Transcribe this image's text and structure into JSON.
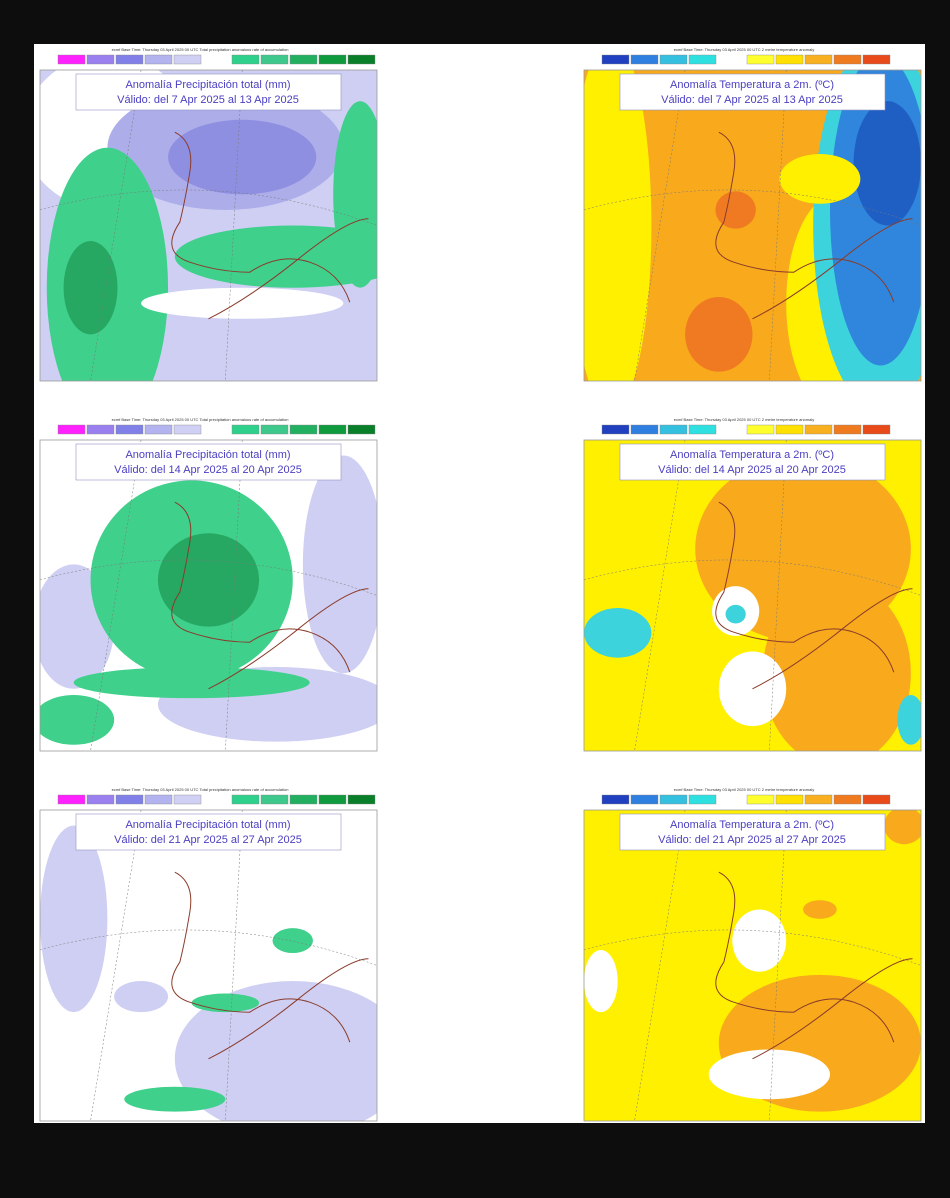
{
  "panels": [
    {
      "header": "ecmf Base Time: Thursday 03 April 2025 00 UTC Total precipitation anomalous rate of accumulation",
      "title": "Anomalía Precipitación total (mm)",
      "valid": "Válido: del 7 Apr 2025 al 13 Apr 2025"
    },
    {
      "header": "ecmf Base Time: Thursday 03 April 2025 00 UTC 2 metre temperature anomaly",
      "title": "Anomalía Temperatura a 2m. (ºC)",
      "valid": "Válido: del 7 Apr 2025 al 13 Apr 2025"
    },
    {
      "header": "ecmf Base Time: Thursday 03 April 2025 00 UTC Total precipitation anomalous rate of accumulation",
      "title": "Anomalía Precipitación total (mm)",
      "valid": "Válido: del 14 Apr 2025 al 20 Apr 2025"
    },
    {
      "header": "ecmf Base Time: Thursday 03 April 2025 00 UTC 2 metre temperature anomaly",
      "title": "Anomalía Temperatura a 2m. (ºC)",
      "valid": "Válido: del 14 Apr 2025 al 20 Apr 2025"
    },
    {
      "header": "ecmf Base Time: Thursday 03 April 2025 00 UTC Total precipitation anomalous rate of accumulation",
      "title": "Anomalía Precipitación total (mm)",
      "valid": "Válido: del 21 Apr 2025 al 27 Apr 2025"
    },
    {
      "header": "ecmf Base Time: Thursday 03 April 2025 00 UTC 2 metre temperature anomaly",
      "title": "Anomalía Temperatura a 2m. (ºC)",
      "valid": "Válido: del 21 Apr 2025 al 27 Apr 2025"
    }
  ]
}
